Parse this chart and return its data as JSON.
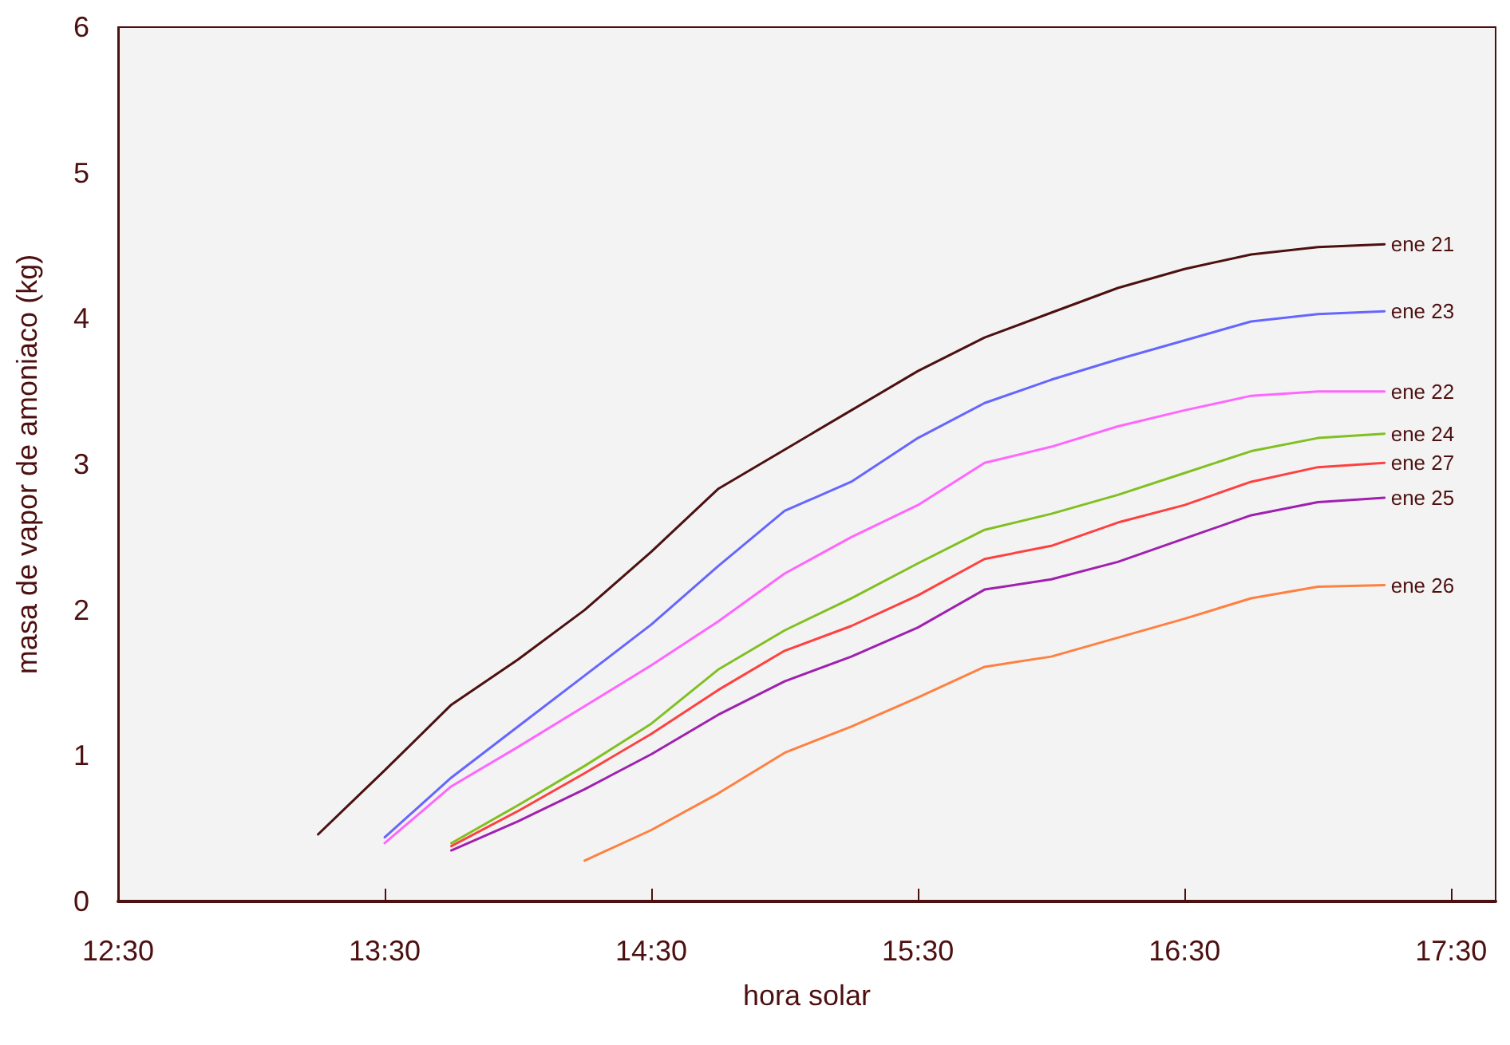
{
  "chart_data": {
    "type": "line",
    "xlabel": "hora solar",
    "ylabel": "masa de vapor de amoniaco (kg)",
    "xlim": [
      12.5,
      17.667
    ],
    "xticks": [
      {
        "value": 12.5,
        "label": "12:30"
      },
      {
        "value": 13.5,
        "label": "13:30"
      },
      {
        "value": 14.5,
        "label": "14:30"
      },
      {
        "value": 15.5,
        "label": "15:30"
      },
      {
        "value": 16.5,
        "label": "16:30"
      },
      {
        "value": 17.5,
        "label": "17:30"
      }
    ],
    "ylim": [
      0,
      6
    ],
    "yticks": [
      0,
      1,
      2,
      3,
      4,
      5,
      6
    ],
    "grid": false,
    "legend": false,
    "marker": "none",
    "line_style": "solid",
    "series": [
      {
        "name": "ene 21",
        "color": "#4d1010",
        "x": [
          13.25,
          13.5,
          13.75,
          14,
          14.25,
          14.5,
          14.75,
          15,
          15.25,
          15.5,
          15.75,
          16,
          16.25,
          16.5,
          16.75,
          17,
          17.25
        ],
        "values": [
          0.46,
          0.9,
          1.35,
          1.66,
          2.0,
          2.4,
          2.83,
          3.1,
          3.37,
          3.64,
          3.87,
          4.04,
          4.21,
          4.34,
          4.44,
          4.49,
          4.51
        ]
      },
      {
        "name": "ene 23",
        "color": "#6666ff",
        "x": [
          13.5,
          13.75,
          14,
          14.25,
          14.5,
          14.75,
          15,
          15.25,
          15.5,
          15.75,
          16,
          16.25,
          16.5,
          16.75,
          17,
          17.25
        ],
        "values": [
          0.44,
          0.85,
          1.2,
          1.55,
          1.9,
          2.3,
          2.68,
          2.88,
          3.18,
          3.42,
          3.58,
          3.72,
          3.85,
          3.98,
          4.03,
          4.05
        ]
      },
      {
        "name": "ene 22",
        "color": "#ff66ff",
        "x": [
          13.5,
          13.75,
          14,
          14.25,
          14.5,
          14.75,
          15,
          15.25,
          15.5,
          15.75,
          16,
          16.25,
          16.5,
          16.75,
          17,
          17.25
        ],
        "values": [
          0.4,
          0.79,
          1.06,
          1.34,
          1.62,
          1.92,
          2.25,
          2.5,
          2.72,
          3.01,
          3.12,
          3.26,
          3.37,
          3.47,
          3.5,
          3.5
        ]
      },
      {
        "name": "ene 24",
        "color": "#80c020",
        "x": [
          13.75,
          14,
          14.25,
          14.5,
          14.75,
          15,
          15.25,
          15.5,
          15.75,
          16,
          16.25,
          16.5,
          16.75,
          17,
          17.25
        ],
        "values": [
          0.4,
          0.66,
          0.93,
          1.22,
          1.59,
          1.86,
          2.08,
          2.32,
          2.55,
          2.66,
          2.79,
          2.94,
          3.09,
          3.18,
          3.21
        ]
      },
      {
        "name": "ene 27",
        "color": "#ff4040",
        "x": [
          13.75,
          14,
          14.25,
          14.5,
          14.75,
          15,
          15.25,
          15.5,
          15.75,
          16,
          16.25,
          16.5,
          16.75,
          17,
          17.25
        ],
        "values": [
          0.38,
          0.62,
          0.88,
          1.15,
          1.45,
          1.72,
          1.89,
          2.1,
          2.35,
          2.44,
          2.6,
          2.72,
          2.88,
          2.98,
          3.01
        ]
      },
      {
        "name": "ene 25",
        "color": "#a020b0",
        "x": [
          13.75,
          14,
          14.25,
          14.5,
          14.75,
          15,
          15.25,
          15.5,
          15.75,
          16,
          16.25,
          16.5,
          16.75,
          17,
          17.25
        ],
        "values": [
          0.35,
          0.55,
          0.77,
          1.01,
          1.28,
          1.51,
          1.68,
          1.88,
          2.14,
          2.21,
          2.33,
          2.49,
          2.65,
          2.74,
          2.77
        ]
      },
      {
        "name": "ene 26",
        "color": "#ff8040",
        "x": [
          14.25,
          14.5,
          14.75,
          15,
          15.25,
          15.5,
          15.75,
          16,
          16.25,
          16.5,
          16.75,
          17,
          17.25
        ],
        "values": [
          0.28,
          0.49,
          0.74,
          1.02,
          1.2,
          1.4,
          1.61,
          1.68,
          1.81,
          1.94,
          2.08,
          2.16,
          2.17
        ]
      }
    ]
  }
}
